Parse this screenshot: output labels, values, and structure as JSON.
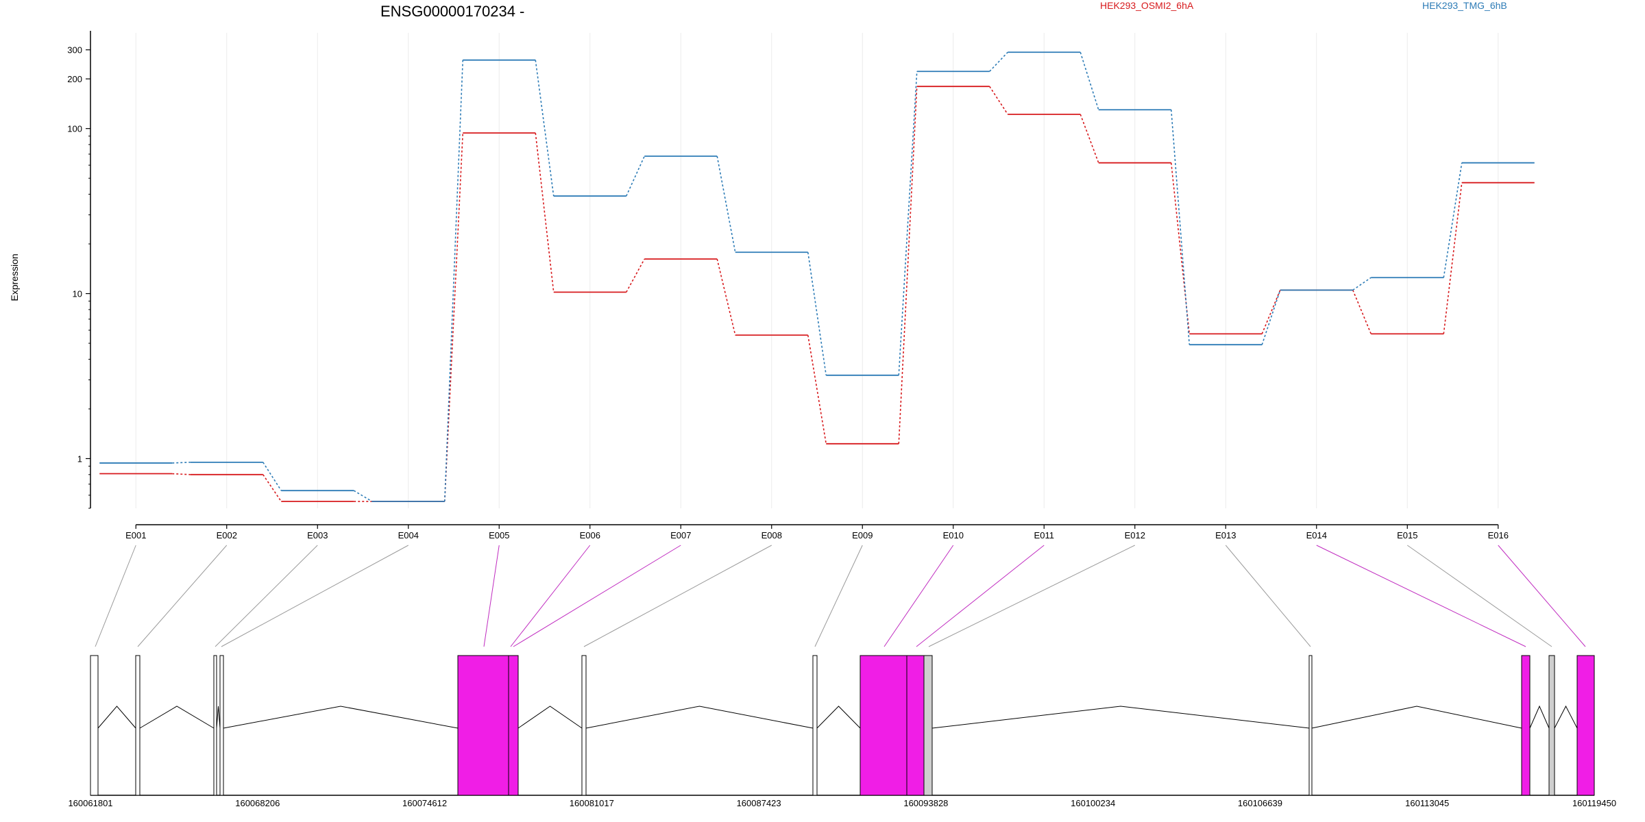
{
  "chart_data": {
    "type": "line",
    "title": "ENSG00000170234 -",
    "ylabel": "Expression",
    "xlabel": "",
    "yscale": "log",
    "ylim": [
      0.5,
      380
    ],
    "yticks": [
      1,
      10,
      100,
      200,
      300
    ],
    "grid": "vertical-light",
    "legend_placement": "top",
    "categories": [
      "E001",
      "E002",
      "E003",
      "E004",
      "E005",
      "E006",
      "E007",
      "E008",
      "E009",
      "E010",
      "E011",
      "E012",
      "E013",
      "E014",
      "E015",
      "E016"
    ],
    "series": [
      {
        "name": "HEK293_OSMI2_6hA",
        "color": "#d7191c",
        "values": [
          0.81,
          0.8,
          0.55,
          0.55,
          94,
          10.2,
          16.2,
          5.6,
          1.23,
          180,
          122,
          62,
          5.7,
          10.5,
          5.7,
          47
        ]
      },
      {
        "name": "HEK293_TMG_6hB",
        "color": "#2c7bb6",
        "values": [
          0.94,
          0.95,
          0.64,
          0.55,
          260,
          39,
          68,
          17.8,
          3.2,
          222,
          290,
          130,
          4.9,
          10.5,
          12.5,
          62
        ]
      }
    ],
    "genomic_axis": {
      "tick_labels": [
        "160061801",
        "160068206",
        "160074612",
        "160081017",
        "160087423",
        "160093828",
        "160100234",
        "160106639",
        "160113045",
        "160119450"
      ]
    },
    "gene_model": {
      "highlight_color": "#f01ee6",
      "intron_color": "#000000",
      "connector_colors": [
        "gray",
        "gray",
        "gray",
        "gray",
        "magenta",
        "magenta",
        "magenta",
        "gray",
        "gray",
        "magenta",
        "magenta",
        "gray",
        "gray",
        "magenta",
        "gray",
        "magenta"
      ]
    }
  }
}
